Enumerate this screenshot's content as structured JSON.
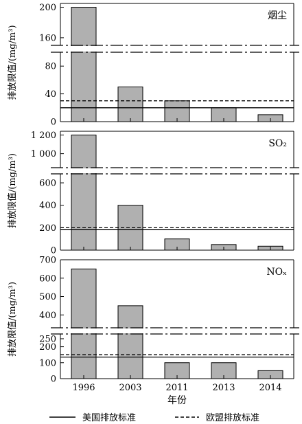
{
  "chart_data": {
    "type": "bar",
    "layout": "three vertically stacked panels with broken y-axes",
    "categories": [
      "1996",
      "2003",
      "2011",
      "2013",
      "2014"
    ],
    "xlabel": "年份",
    "legend": {
      "placement": "bottom",
      "items": [
        {
          "label": "美国排放标准",
          "style": "solid"
        },
        {
          "label": "欧盟排放标准",
          "style": "dashed"
        }
      ]
    },
    "bar_color": "#b0b0b0",
    "panels": [
      {
        "name": "烟尘",
        "title": "烟尘",
        "ylabel": "排放限值/(mg/m³)",
        "values": [
          200,
          50,
          30,
          20,
          10
        ],
        "reference_lines": {
          "us": 20,
          "eu": 30
        },
        "axis_break": {
          "lower": [
            0,
            100
          ],
          "upper": [
            150,
            205
          ]
        },
        "yticks": [
          {
            "value": 0,
            "label": "0"
          },
          {
            "value": 40,
            "label": "40"
          },
          {
            "value": 80,
            "label": "80"
          },
          {
            "value": 160,
            "label": "160"
          },
          {
            "value": 200,
            "label": "200"
          }
        ]
      },
      {
        "name": "SO2",
        "title": "SO₂",
        "ylabel": "排放限值/(mg/m³)",
        "values": [
          1200,
          400,
          100,
          50,
          35
        ],
        "reference_lines": {
          "us": 185,
          "eu": 200
        },
        "axis_break": {
          "lower": [
            0,
            680
          ],
          "upper": [
            850,
            1240
          ]
        },
        "yticks": [
          {
            "value": 0,
            "label": "0"
          },
          {
            "value": 200,
            "label": "200"
          },
          {
            "value": 400,
            "label": "400"
          },
          {
            "value": 600,
            "label": "600"
          },
          {
            "value": 1000,
            "label": "1 000"
          },
          {
            "value": 1200,
            "label": "1 200"
          }
        ]
      },
      {
        "name": "NOx",
        "title": "NOₓ",
        "ylabel": "排放限值/(mg/m³)",
        "values": [
          650,
          450,
          100,
          100,
          50
        ],
        "reference_lines": {
          "us": 135,
          "eu": 150
        },
        "axis_break": {
          "lower": [
            0,
            280
          ],
          "upper": [
            330,
            700
          ]
        },
        "yticks": [
          {
            "value": 0,
            "label": "0"
          },
          {
            "value": 100,
            "label": "100"
          },
          {
            "value": 200,
            "label": "200"
          },
          {
            "value": 250,
            "label": "250"
          },
          {
            "value": 400,
            "label": "400"
          },
          {
            "value": 500,
            "label": "500"
          },
          {
            "value": 600,
            "label": "600"
          },
          {
            "value": 700,
            "label": "700"
          }
        ]
      }
    ]
  }
}
